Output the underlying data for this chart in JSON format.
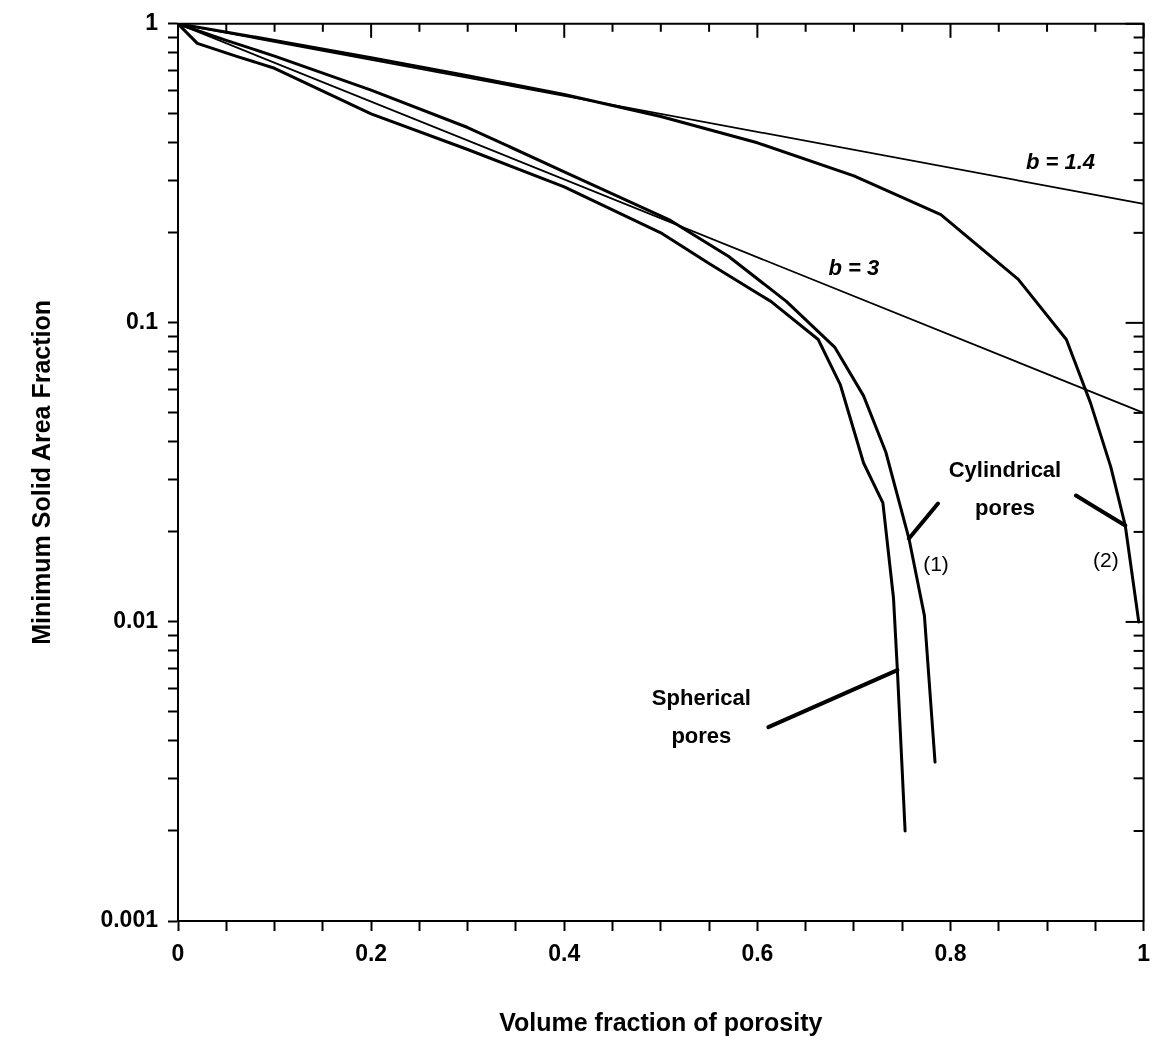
{
  "chart_data": {
    "type": "line",
    "xlabel": "Volume fraction of porosity",
    "ylabel": "Minimum Solid Area Fraction",
    "log": "y",
    "xlim": [
      0,
      1
    ],
    "ylim": [
      0.001,
      1
    ],
    "xticks": [
      0,
      {
        "value": 0.05,
        "label": null
      },
      {
        "value": 0.1,
        "label": null
      },
      {
        "value": 0.15,
        "label": null
      },
      {
        "value": 0.2,
        "label": "0.2"
      },
      {
        "value": 0.25,
        "label": null
      },
      {
        "value": 0.3,
        "label": null
      },
      {
        "value": 0.35,
        "label": null
      },
      {
        "value": 0.4,
        "label": "0.4"
      },
      {
        "value": 0.45,
        "label": null
      },
      {
        "value": 0.5,
        "label": null
      },
      {
        "value": 0.55,
        "label": null
      },
      {
        "value": 0.6,
        "label": "0.6"
      },
      {
        "value": 0.65,
        "label": null
      },
      {
        "value": 0.7,
        "label": null
      },
      {
        "value": 0.75,
        "label": null
      },
      {
        "value": 0.8,
        "label": "0.8"
      },
      {
        "value": 0.85,
        "label": null
      },
      {
        "value": 0.9,
        "label": null
      },
      {
        "value": 0.95,
        "label": null
      },
      1
    ],
    "yticks": [
      {
        "value": 0.001,
        "label": "0.001"
      },
      {
        "value": 0.002,
        "label": null
      },
      {
        "value": 0.003,
        "label": null
      },
      {
        "value": 0.004,
        "label": null
      },
      {
        "value": 0.005,
        "label": null
      },
      {
        "value": 0.006,
        "label": null
      },
      {
        "value": 0.007,
        "label": null
      },
      {
        "value": 0.008,
        "label": null
      },
      {
        "value": 0.009,
        "label": null
      },
      {
        "value": 0.01,
        "label": "0.01"
      },
      {
        "value": 0.02,
        "label": null
      },
      {
        "value": 0.03,
        "label": null
      },
      {
        "value": 0.04,
        "label": null
      },
      {
        "value": 0.05,
        "label": null
      },
      {
        "value": 0.06,
        "label": null
      },
      {
        "value": 0.07,
        "label": null
      },
      {
        "value": 0.08,
        "label": null
      },
      {
        "value": 0.09,
        "label": null
      },
      {
        "value": 0.1,
        "label": "0.1"
      },
      {
        "value": 0.2,
        "label": null
      },
      {
        "value": 0.3,
        "label": null
      },
      {
        "value": 0.4,
        "label": null
      },
      {
        "value": 0.5,
        "label": null
      },
      {
        "value": 0.6,
        "label": null
      },
      {
        "value": 0.7,
        "label": null
      },
      {
        "value": 0.8,
        "label": null
      },
      {
        "value": 0.9,
        "label": null
      },
      1
    ],
    "legend": false,
    "marker": "none",
    "line_style": "solid",
    "series": [
      {
        "color": "#000000",
        "x": [
          0,
          1
        ],
        "values": [
          1,
          0.25
        ]
      },
      {
        "color": "#000000",
        "x": [
          0,
          1
        ],
        "values": [
          1,
          0.05
        ]
      },
      {
        "color": "#000000",
        "x": [
          0,
          0.1,
          0.2,
          0.3,
          0.4,
          0.5,
          0.6,
          0.7,
          0.79,
          0.87,
          0.92,
          0.945,
          0.966,
          0.981,
          0.995
        ],
        "values": [
          1,
          0.88,
          0.77,
          0.67,
          0.58,
          0.49,
          0.4,
          0.31,
          0.23,
          0.14,
          0.088,
          0.054,
          0.033,
          0.021,
          0.01
        ]
      },
      {
        "color": "#000000",
        "x": [
          0,
          0.05,
          0.1,
          0.2,
          0.3,
          0.4,
          0.51,
          0.57,
          0.63,
          0.68,
          0.71,
          0.733,
          0.757,
          0.773,
          0.784
        ],
        "values": [
          1,
          0.88,
          0.78,
          0.6,
          0.45,
          0.32,
          0.22,
          0.167,
          0.118,
          0.083,
          0.057,
          0.037,
          0.019,
          0.0105,
          0.0034
        ]
      },
      {
        "color": "#000000",
        "x": [
          0,
          0.02,
          0.06,
          0.1,
          0.2,
          0.3,
          0.4,
          0.5,
          0.55,
          0.614,
          0.663,
          0.686,
          0.71,
          0.73,
          0.741,
          0.745,
          0.753
        ],
        "values": [
          1,
          0.86,
          0.78,
          0.71,
          0.5,
          0.38,
          0.285,
          0.2,
          0.158,
          0.118,
          0.088,
          0.062,
          0.034,
          0.025,
          0.012,
          0.0069,
          0.002
        ]
      }
    ],
    "annotations": [
      "b = 1.4",
      "b = 3",
      "(1)",
      "(2)",
      {
        "text": "Cylindrical pores",
        "x": 0.757,
        "y": 0.019
      },
      {
        "text": "Spherical pores",
        "x": 0.745,
        "y": 0.0069
      }
    ]
  }
}
